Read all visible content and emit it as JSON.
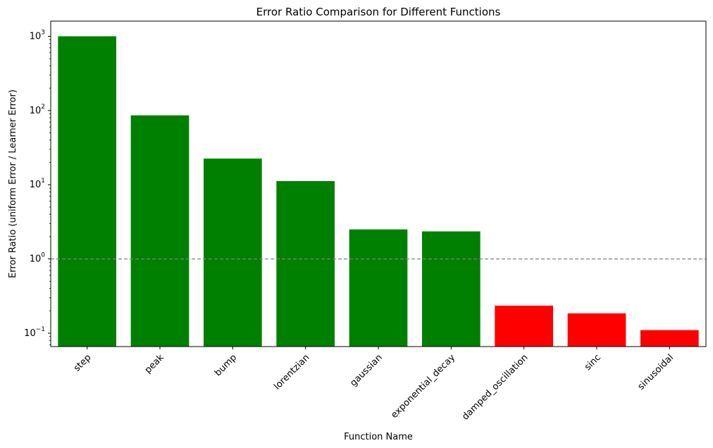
{
  "chart_data": {
    "type": "bar",
    "title": "Error Ratio Comparison for Different Functions",
    "xlabel": "Function Name",
    "ylabel": "Error Ratio (uniform Error / Learner Error)",
    "yscale": "log",
    "ylim": [
      0.066,
      1600
    ],
    "yticks": [
      {
        "value": 0.1,
        "base": "10",
        "exp": "−1"
      },
      {
        "value": 1,
        "base": "10",
        "exp": "0"
      },
      {
        "value": 10,
        "base": "10",
        "exp": "1"
      },
      {
        "value": 100,
        "base": "10",
        "exp": "2"
      },
      {
        "value": 1000,
        "base": "10",
        "exp": "3"
      }
    ],
    "categories": [
      "step",
      "peak",
      "bump",
      "lorentzian",
      "gaussian",
      "exponential_decay",
      "damped_oscillation",
      "sinc",
      "sinusoidal"
    ],
    "values": [
      1000,
      86,
      22.5,
      11.2,
      2.5,
      2.35,
      0.235,
      0.185,
      0.11
    ],
    "bar_colors": [
      "#008000",
      "#008000",
      "#008000",
      "#008000",
      "#008000",
      "#008000",
      "#ff0000",
      "#ff0000",
      "#ff0000"
    ],
    "reference_line": {
      "value": 1,
      "style": "dashed",
      "color": "#808080"
    },
    "grid": false,
    "legend": "none"
  }
}
